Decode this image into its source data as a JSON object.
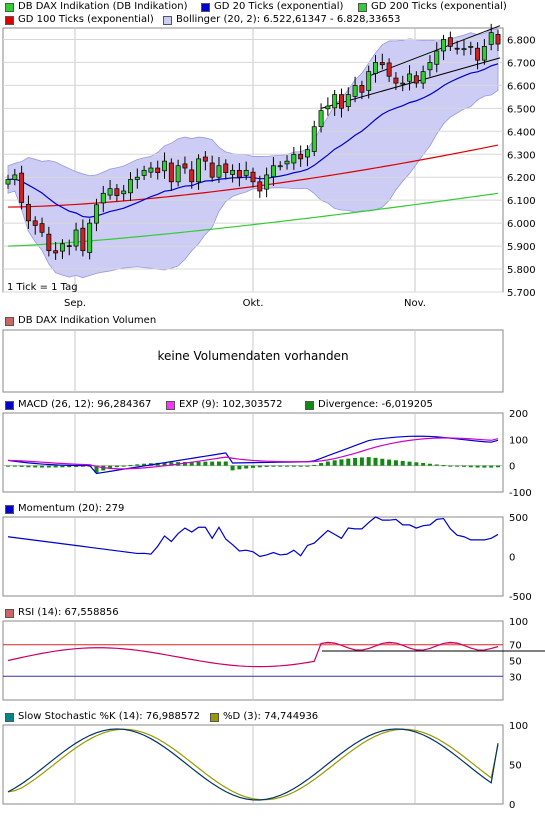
{
  "colors": {
    "up_candle": "#33cc33",
    "down_candle": "#cc2222",
    "gd20": "#0000cc",
    "gd200": "#33cc33",
    "gd100": "#dd0000",
    "bollinger_fill": "#ccccf4",
    "bollinger_line": "#9999dd",
    "macd_line": "#0000cc",
    "exp_line": "#cc00cc",
    "divergence": "#118811",
    "momentum": "#0000cc",
    "rsi": "#cc0066",
    "rsi_band_70": "#dd2222",
    "rsi_band_30": "#3333aa",
    "stoch_k": "#003366",
    "stoch_d": "#999900"
  },
  "legends": {
    "price": {
      "item1": "DB DAX Indikation (DB Indikation)",
      "item2": "GD 20 Ticks (exponential)",
      "item3": "GD 200 Ticks (exponential)",
      "item4": "GD 100 Ticks (exponential)",
      "item5": "Bollinger (20, 2): 6.522,61347 - 6.828,33653"
    },
    "volume": "DB DAX Indikation Volumen",
    "macd": {
      "item1": "MACD (26, 12): 96,284367",
      "item2": "EXP (9): 102,303572",
      "item3": "Divergence: -6,019205"
    },
    "momentum": "Momentum (20): 279",
    "rsi": "RSI (14): 67,558856",
    "stoch": {
      "item1": "Slow Stochastic %K (14): 76,988572",
      "item2": "%D (3): 74,744936"
    }
  },
  "volume_message": "keine Volumendaten vorhanden",
  "tick_note": "1 Tick = 1 Tag",
  "x_labels": [
    "Sep.",
    "Okt.",
    "Nov."
  ],
  "chart_data": [
    {
      "type": "candlestick",
      "ylim": [
        5700,
        6850
      ],
      "y_ticks": [
        "6.800",
        "6.700",
        "6.600",
        "6.500",
        "6.400",
        "6.300",
        "6.200",
        "6.100",
        "6.000",
        "5.900",
        "5.800",
        "5.700"
      ],
      "y_tick_values": [
        6800,
        6700,
        6600,
        6500,
        6400,
        6300,
        6200,
        6100,
        6000,
        5900,
        5800,
        5700
      ],
      "closes": [
        6190,
        6210,
        6090,
        6010,
        5990,
        5960,
        5880,
        5870,
        5910,
        5900,
        5970,
        5880,
        6000,
        6080,
        6130,
        6150,
        6120,
        6140,
        6190,
        6200,
        6230,
        6240,
        6220,
        6270,
        6180,
        6250,
        6240,
        6180,
        6280,
        6270,
        6200,
        6250,
        6220,
        6230,
        6200,
        6230,
        6180,
        6140,
        6210,
        6250,
        6250,
        6270,
        6300,
        6280,
        6320,
        6420,
        6490,
        6510,
        6560,
        6500,
        6560,
        6600,
        6570,
        6660,
        6700,
        6690,
        6640,
        6610,
        6610,
        6650,
        6610,
        6660,
        6700,
        6750,
        6800,
        6770,
        6760,
        6760,
        6770,
        6710,
        6770,
        6830,
        6780
      ],
      "gd20_end": 6730,
      "gd100_end": 6340,
      "gd200_end": 6130,
      "bollinger_end": [
        6522.61347,
        6828.33653
      ]
    },
    {
      "type": "line",
      "title": "MACD",
      "ylim": [
        -100,
        200
      ],
      "y_ticks": [
        200,
        100,
        0,
        -100
      ],
      "series": [
        {
          "name": "MACD (26, 12)",
          "last": 96.284367
        },
        {
          "name": "EXP (9)",
          "last": 102.303572
        },
        {
          "name": "Divergence",
          "last": -6.019205
        }
      ]
    },
    {
      "type": "line",
      "title": "Momentum",
      "ylim": [
        -500,
        500
      ],
      "y_ticks": [
        500,
        0,
        -500
      ],
      "series": [
        {
          "name": "Momentum (20)",
          "last": 279
        }
      ]
    },
    {
      "type": "line",
      "title": "RSI",
      "ylim": [
        0,
        100
      ],
      "y_ticks": [
        100,
        70,
        50,
        30
      ],
      "series": [
        {
          "name": "RSI (14)",
          "last": 67.558856
        }
      ]
    },
    {
      "type": "line",
      "title": "Slow Stochastic",
      "ylim": [
        0,
        100
      ],
      "y_ticks": [
        100,
        50,
        0
      ],
      "series": [
        {
          "name": "Slow Stochastic %K (14)",
          "last": 76.988572
        },
        {
          "name": "%D (3)",
          "last": 74.744936
        }
      ]
    }
  ]
}
